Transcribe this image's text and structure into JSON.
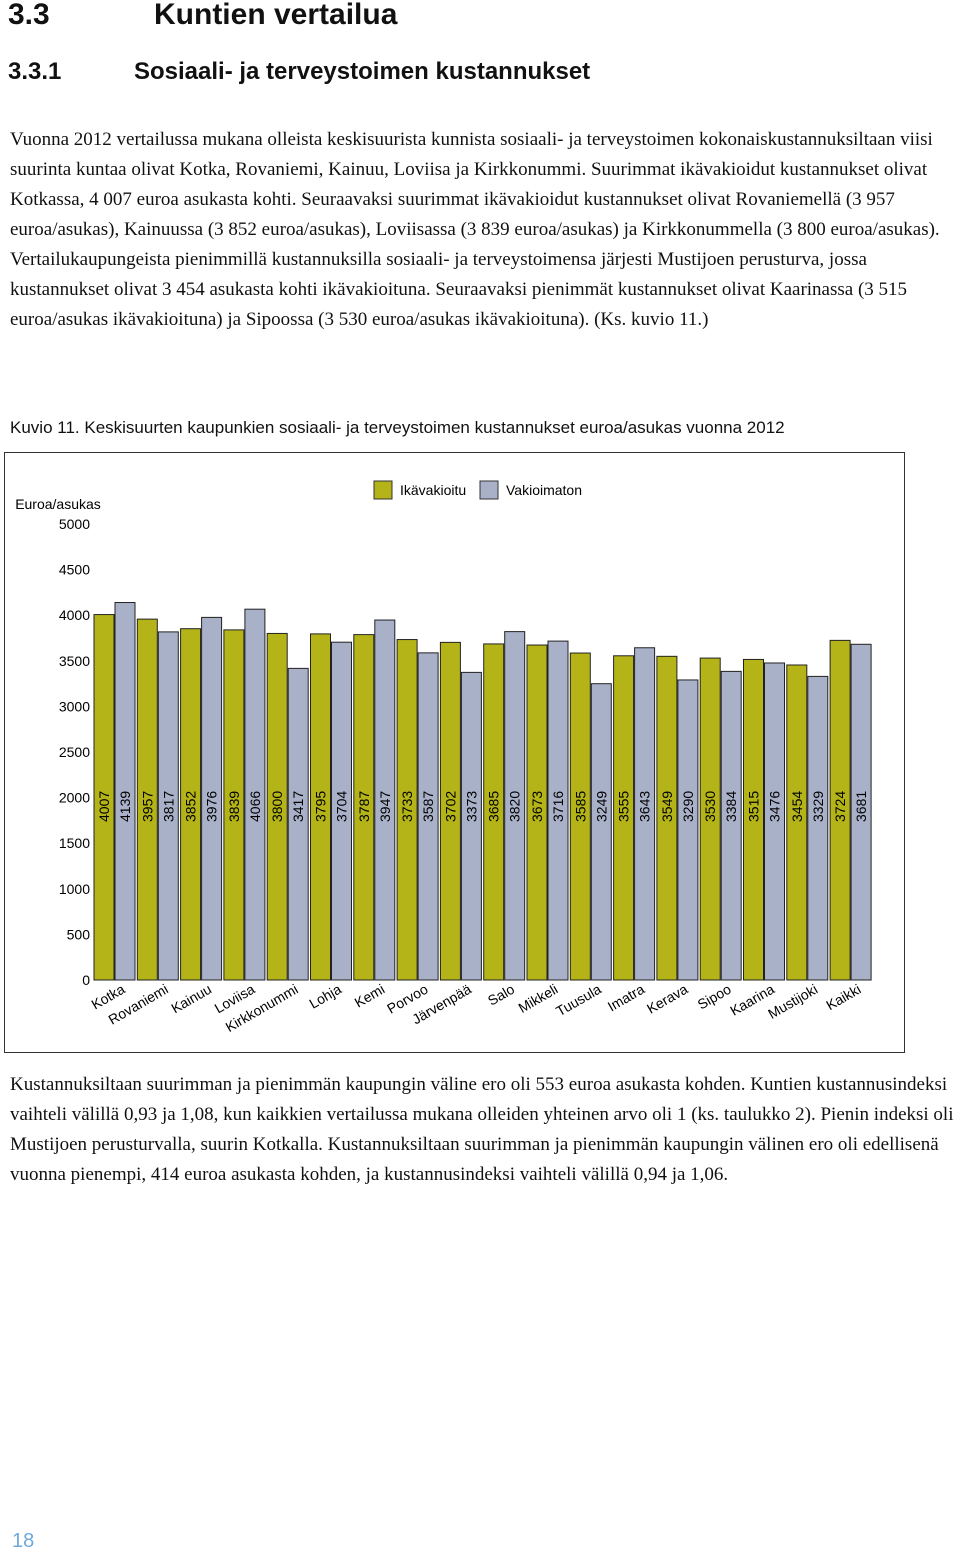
{
  "heading1": {
    "number": "3.3",
    "title": "Kuntien vertailua"
  },
  "heading2": {
    "number": "3.3.1",
    "title": "Sosiaali- ja terveystoimen kustannukset"
  },
  "paragraphs": [
    "Vuonna 2012 vertailussa mukana olleista keskisuurista kunnista sosiaali- ja terveystoimen kokonaiskustannuksiltaan viisi suurinta kuntaa olivat Kotka, Rovaniemi, Kainuu, Loviisa ja Kirkkonummi. Suurimmat ikävakioidut kustannukset olivat Kotkassa, 4 007 euroa asukasta kohti. Seuraavaksi suurimmat ikävakioidut kustannukset olivat Rovaniemellä (3 957 euroa/asukas), Kainuussa (3 852 euroa/asukas), Loviisassa (3 839 euroa/asukas) ja Kirkkonummella (3 800 euroa/asukas). Vertailukaupungeista pienimmillä kustannuksilla sosiaali- ja terveystoimensa järjesti Mustijoen perusturva, jossa kustannukset olivat 3 454 asukasta kohti ikävakioituna. Seuraavaksi pienimmät kustannukset olivat Kaarinassa (3 515 euroa/asukas ikävakioituna) ja Sipoossa (3 530 euroa/asukas ikävakioituna). (Ks. kuvio 11.)",
    "Kustannuksiltaan suurimman ja pienimmän kaupungin väline ero oli 553 euroa asukasta kohden. Kuntien kustannusindeksi vaihteli välillä 0,93 ja 1,08, kun kaikkien vertailussa mukana olleiden yhteinen arvo oli 1 (ks. taulukko 2). Pienin indeksi oli Mustijoen perusturvalla, suurin Kotkalla. Kustannuksiltaan suurimman ja pienimmän kaupungin välinen ero oli edellisenä vuonna pienempi, 414 euroa asukasta kohden, ja kustannusindeksi vaihteli välillä 0,94 ja 1,06."
  ],
  "figure": {
    "label": "Kuvio 11.",
    "caption": "Keskisuurten kaupunkien sosiaali- ja terveystoimen kustannukset  euroa/asukas vuonna 2012",
    "chart_data": {
      "type": "bar",
      "y_label": "Euroa/asukas",
      "categories": [
        "Kotka",
        "Rovaniemi",
        "Kainuu",
        "Loviisa",
        "Kirkkonummi",
        "Lohja",
        "Kemi",
        "Porvoo",
        "Järvenpää",
        "Salo",
        "Mikkeli",
        "Tuusula",
        "Imatra",
        "Kerava",
        "Sipoo",
        "Kaarina",
        "Mustijoki",
        "Kaikki"
      ],
      "series": [
        {
          "name": "Ikävakioitu",
          "color": "#b4b418",
          "values": [
            4007,
            3957,
            3852,
            3839,
            3800,
            3795,
            3787,
            3733,
            3702,
            3685,
            3673,
            3585,
            3555,
            3549,
            3530,
            3515,
            3454,
            3724
          ]
        },
        {
          "name": "Vakioimaton",
          "color": "#a9b1c9",
          "values": [
            4139,
            3817,
            3976,
            4066,
            3417,
            3704,
            3947,
            3587,
            3373,
            3820,
            3716,
            3249,
            3643,
            3290,
            3384,
            3476,
            3329,
            3681
          ]
        }
      ],
      "ylim": [
        0,
        5000
      ],
      "yticks": [
        0,
        500,
        1000,
        1500,
        2000,
        2500,
        3000,
        3500,
        4000,
        4500,
        5000
      ]
    }
  },
  "page_number": "18"
}
